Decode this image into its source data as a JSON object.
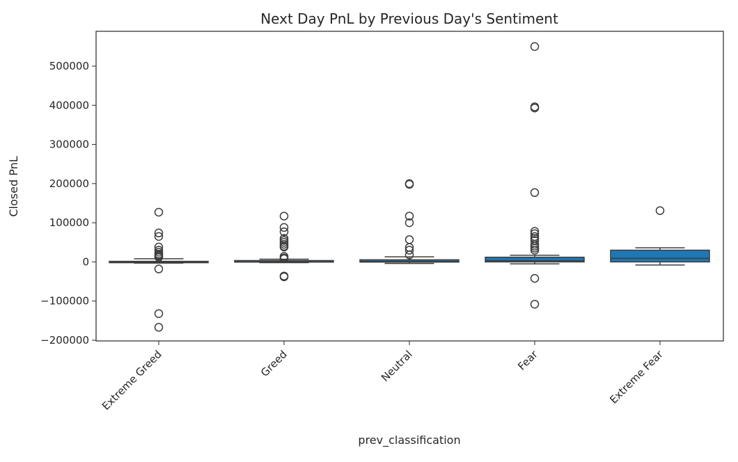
{
  "chart_data": {
    "type": "box",
    "title": "Next Day PnL by Previous Day's Sentiment",
    "xlabel": "prev_classification",
    "ylabel": "Closed PnL",
    "ylim": [
      -205000,
      580000
    ],
    "yticks": [
      -200000,
      -100000,
      0,
      100000,
      200000,
      300000,
      400000,
      500000
    ],
    "ytick_labels": [
      "−200000",
      "−100000",
      "0",
      "100000",
      "200000",
      "300000",
      "400000",
      "500000"
    ],
    "grid": false,
    "box_color": "#1f77b4",
    "categories": [
      "Extreme Greed",
      "Greed",
      "Neutral",
      "Fear",
      "Extreme Fear"
    ],
    "boxes": [
      {
        "category": "Extreme Greed",
        "whisker_low": -3000,
        "q1": -1000,
        "median": 0,
        "q3": 1500,
        "whisker_high": 8000,
        "outliers": [
          127000,
          74000,
          65000,
          38000,
          30000,
          25000,
          20000,
          17000,
          14000,
          12000,
          -18000,
          -132000,
          -167000
        ]
      },
      {
        "category": "Greed",
        "whisker_low": -2000,
        "q1": -500,
        "median": 500,
        "q3": 3500,
        "whisker_high": 7000,
        "outliers": [
          117000,
          88000,
          77000,
          60000,
          55000,
          50000,
          45000,
          40000,
          38000,
          14000,
          10000,
          8000,
          -36000,
          -38000
        ]
      },
      {
        "category": "Neutral",
        "whisker_low": -4000,
        "q1": -500,
        "median": 1500,
        "q3": 5500,
        "whisker_high": 13000,
        "outliers": [
          200000,
          198000,
          117000,
          100000,
          57000,
          37000,
          30000,
          18000
        ]
      },
      {
        "category": "Fear",
        "whisker_low": -5000,
        "q1": 0,
        "median": 3000,
        "q3": 12000,
        "whisker_high": 17000,
        "outliers": [
          550000,
          396000,
          393000,
          177000,
          78000,
          72000,
          65000,
          60000,
          55000,
          45000,
          40000,
          35000,
          30000,
          -42000,
          -108000
        ]
      },
      {
        "category": "Extreme Fear",
        "whisker_low": -8000,
        "q1": 0,
        "median": 9000,
        "q3": 30000,
        "whisker_high": 36000,
        "outliers": [
          131000
        ]
      }
    ]
  }
}
